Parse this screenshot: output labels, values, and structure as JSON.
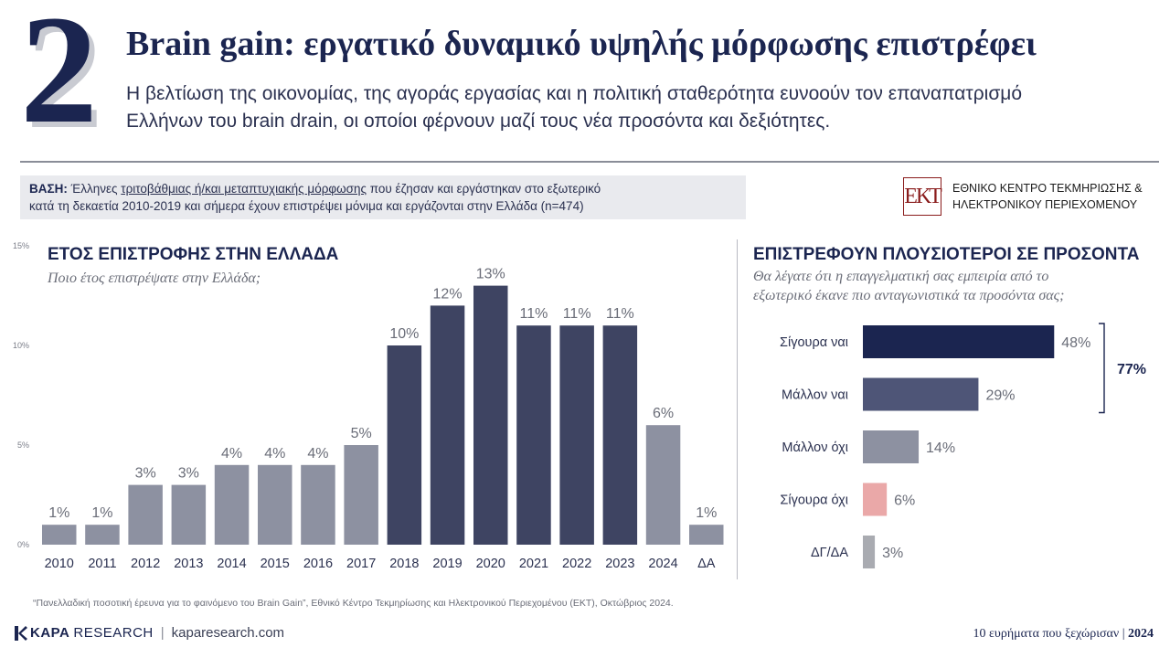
{
  "header": {
    "number": "2",
    "title": "Brain gain: εργατικό δυναμικό υψηλής μόρφωσης επιστρέφει",
    "subtitle_line1": "Η βελτίωση της οικονομίας, της αγοράς εργασίας και η πολιτική σταθερότητα ευνοούν τον επαναπατρισμό",
    "subtitle_line2": "Ελλήνων του brain drain, οι οποίοι φέρνουν μαζί τους νέα προσόντα και δεξιότητες."
  },
  "base": {
    "label": "ΒΑΣΗ:",
    "text_before": "Έλληνες",
    "text_underlined": "τριτοβάθμιας ή/και μεταπτυχιακής μόρφωσης",
    "text_after": "που έζησαν και εργάστηκαν στο εξωτερικό",
    "line2": "κατά τη δεκαετία 2010-2019 και σήμερα έχουν επιστρέψει μόνιμα και εργάζονται στην Ελλάδα (n=474)"
  },
  "org": {
    "logo": "ΕΚΤ",
    "line1": "ΕΘΝΙΚΟ ΚΕΝΤΡΟ ΤΕΚΜΗΡΙΩΣΗΣ &",
    "line2": "ΗΛΕΚΤΡΟΝΙΚΟΥ ΠΕΡΙΕΧΟΜΕΝΟΥ"
  },
  "left_panel": {
    "title": "ΕΤΟΣ ΕΠΙΣΤΡΟΦΗΣ ΣΤΗΝ ΕΛΛΑΔΑ",
    "question": "Ποιο έτος επιστρέψατε στην Ελλάδα;"
  },
  "right_panel": {
    "title": "ΕΠΙΣΤΡΕΦΟΥΝ ΠΛΟΥΣΙΟΤΕΡΟΙ ΣΕ ΠΡΟΣΟΝΤΑ",
    "question_line1": "Θα λέγατε ότι η επαγγελματική σας εμπειρία από το",
    "question_line2": "εξωτερικό έκανε πιο ανταγωνιστικά τα προσόντα σας;"
  },
  "chart_data": [
    {
      "type": "bar",
      "title": "ΕΤΟΣ ΕΠΙΣΤΡΟΦΗΣ ΣΤΗΝ ΕΛΛΑΔΑ",
      "categories": [
        "2010",
        "2011",
        "2012",
        "2013",
        "2014",
        "2015",
        "2016",
        "2017",
        "2018",
        "2019",
        "2020",
        "2021",
        "2022",
        "2023",
        "2024",
        "ΔΑ"
      ],
      "values": [
        1,
        1,
        3,
        3,
        4,
        4,
        4,
        5,
        10,
        12,
        13,
        11,
        11,
        11,
        6,
        1
      ],
      "value_labels": [
        "1%",
        "1%",
        "3%",
        "3%",
        "4%",
        "4%",
        "4%",
        "5%",
        "10%",
        "12%",
        "13%",
        "11%",
        "11%",
        "11%",
        "6%",
        "1%"
      ],
      "yticks": [
        0,
        5,
        10,
        15
      ],
      "ytick_labels": [
        "0%",
        "5%",
        "10%",
        "15%"
      ],
      "ylim": [
        0,
        15
      ],
      "colors": [
        "#8d91a1",
        "#8d91a1",
        "#8d91a1",
        "#8d91a1",
        "#8d91a1",
        "#8d91a1",
        "#8d91a1",
        "#8d91a1",
        "#3e4462",
        "#3e4462",
        "#3e4462",
        "#3e4462",
        "#3e4462",
        "#3e4462",
        "#8d91a1",
        "#8d91a1"
      ]
    },
    {
      "type": "bar",
      "orientation": "horizontal",
      "title": "ΕΠΙΣΤΡΕΦΟΥΝ ΠΛΟΥΣΙΟΤΕΡΟΙ ΣΕ ΠΡΟΣΟΝΤΑ",
      "categories": [
        "Σίγουρα ναι",
        "Μάλλον ναι",
        "Μάλλον όχι",
        "Σίγουρα όχι",
        "ΔΓ/ΔΑ"
      ],
      "values": [
        48,
        29,
        14,
        6,
        3
      ],
      "value_labels": [
        "48%",
        "29%",
        "14%",
        "6%",
        "3%"
      ],
      "colors": [
        "#1b2550",
        "#4e5577",
        "#8d91a1",
        "#eaa8a8",
        "#a9abb1"
      ],
      "bracket_total": "77%",
      "xlim": [
        0,
        50
      ]
    }
  ],
  "source": "“Πανελλαδική ποσοτική έρευνα για το φαινόμενο του Brain Gain”, Εθνικό Κέντρο Τεκμηρίωσης και Ηλεκτρονικού Περιεχομένου (ΕΚΤ), Οκτώβριος 2024.",
  "footer": {
    "brand1": "KAPA",
    "brand2": "RESEARCH",
    "sep": "|",
    "site": "kaparesearch.com",
    "right_text": "10 ευρήματα που ξεχώρισαν",
    "right_sep": "|",
    "right_year": "2024"
  }
}
